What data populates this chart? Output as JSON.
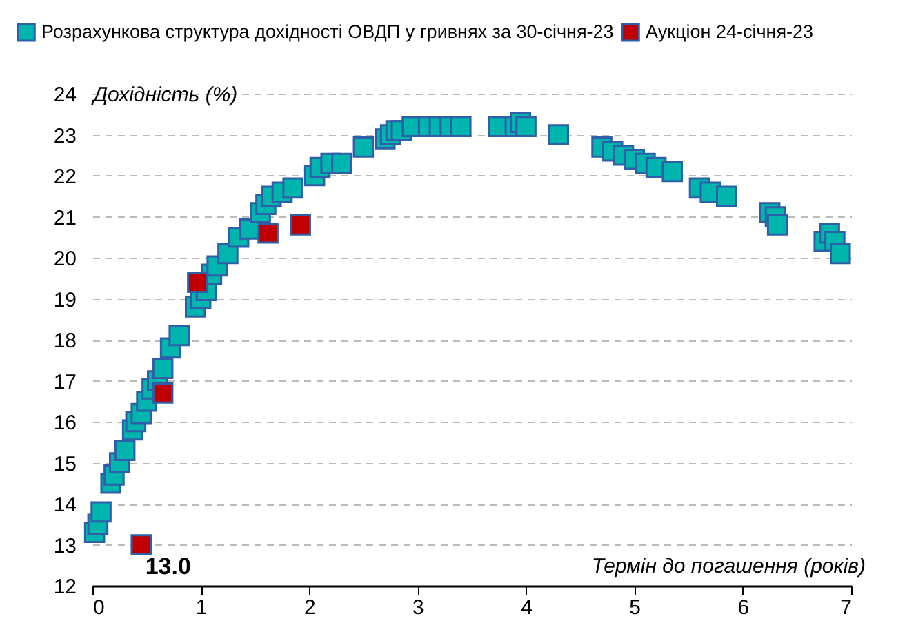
{
  "chart_data": {
    "type": "scatter",
    "xlabel": "Термін до погашення (років)",
    "ylabel": "Дохідність (%)",
    "xlim": [
      0,
      7
    ],
    "xticks": [
      0,
      1,
      2,
      3,
      4,
      5,
      6,
      7
    ],
    "ylim": [
      12,
      24
    ],
    "yticks": [
      12,
      13,
      14,
      15,
      16,
      17,
      18,
      19,
      20,
      21,
      22,
      23,
      24
    ],
    "grid": "y",
    "legend": "top",
    "marker": "square",
    "series": [
      {
        "name": "Розрахункова структура дохідності ОВДП у гривнях за 30-січня-23",
        "color": "#00b5ad",
        "x": [
          0.02,
          0.05,
          0.08,
          0.17,
          0.2,
          0.25,
          0.3,
          0.37,
          0.4,
          0.45,
          0.5,
          0.55,
          0.6,
          0.65,
          0.72,
          0.8,
          0.95,
          1.0,
          1.05,
          1.1,
          1.15,
          1.25,
          1.35,
          1.45,
          1.55,
          1.6,
          1.65,
          1.75,
          1.85,
          2.05,
          2.1,
          2.2,
          2.3,
          2.5,
          2.7,
          2.75,
          2.8,
          2.85,
          2.95,
          3.1,
          3.2,
          3.3,
          3.4,
          3.75,
          3.9,
          3.95,
          4.0,
          4.3,
          4.7,
          4.8,
          4.9,
          5.0,
          5.1,
          5.2,
          5.35,
          5.6,
          5.7,
          5.85,
          6.25,
          6.3,
          6.32,
          6.75,
          6.8,
          6.85,
          6.9
        ],
        "values": [
          13.3,
          13.5,
          13.8,
          14.5,
          14.7,
          15.0,
          15.3,
          15.8,
          16.0,
          16.2,
          16.5,
          16.8,
          17.0,
          17.3,
          17.8,
          18.1,
          18.8,
          19.0,
          19.2,
          19.6,
          19.8,
          20.1,
          20.5,
          20.7,
          21.1,
          21.3,
          21.5,
          21.6,
          21.7,
          22.0,
          22.2,
          22.3,
          22.3,
          22.7,
          22.9,
          23.0,
          23.1,
          23.1,
          23.2,
          23.2,
          23.2,
          23.2,
          23.2,
          23.2,
          23.2,
          23.3,
          23.2,
          23.0,
          22.7,
          22.6,
          22.5,
          22.4,
          22.3,
          22.2,
          22.1,
          21.7,
          21.6,
          21.5,
          21.1,
          21.0,
          20.8,
          20.4,
          20.6,
          20.4,
          20.1
        ]
      },
      {
        "name": "Аукціон 24-січня-23",
        "color": "#c00000",
        "x": [
          0.45,
          0.65,
          0.97,
          1.62,
          1.92
        ],
        "values": [
          13.0,
          16.7,
          19.4,
          20.6,
          20.8
        ],
        "value_labels": [
          "13.0",
          null,
          null,
          null,
          null
        ]
      }
    ]
  }
}
